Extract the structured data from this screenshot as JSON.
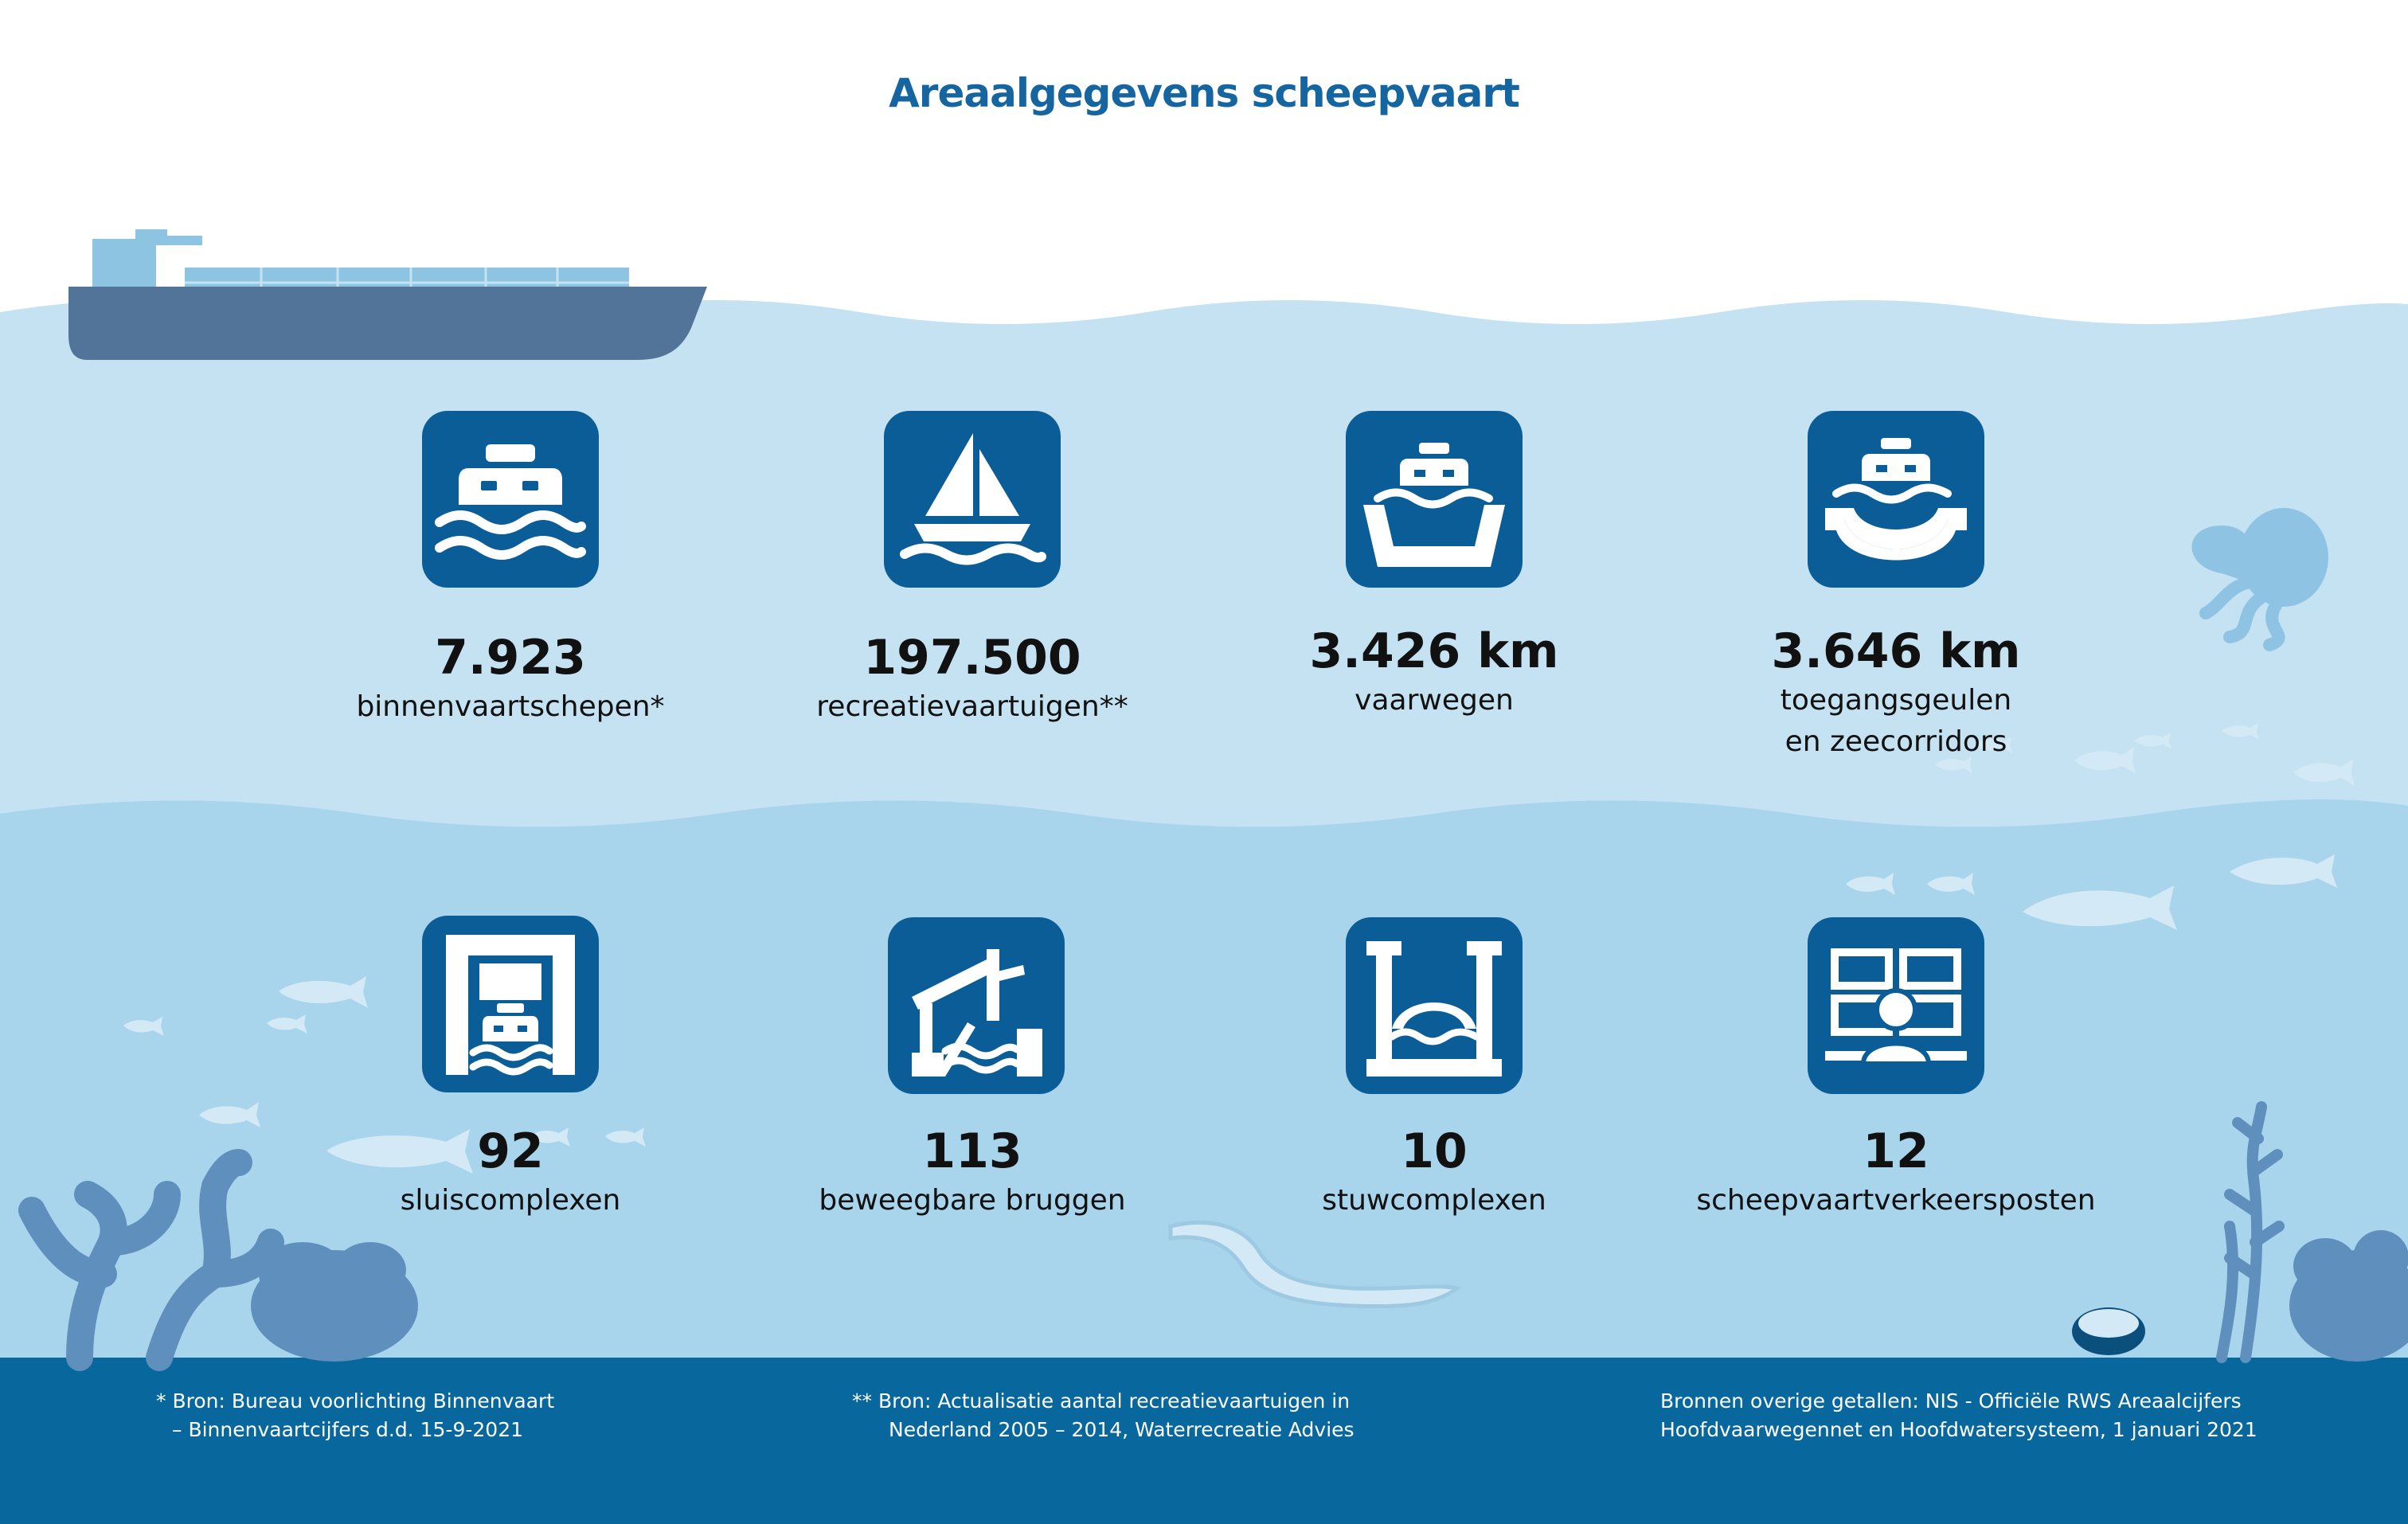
{
  "title": "Areaalgegevens scheepvaart",
  "colors": {
    "title": "#1565a0",
    "icon_bg": "#0b5d98",
    "sea_top": "#c4e2f1",
    "sea_mid": "#a8d4ec",
    "sea_floor": "#08679d",
    "decor": "#5f8fbd"
  },
  "stats": [
    {
      "icon": "inland-ship-icon",
      "value": "7.923",
      "label": "binnenvaartschepen*"
    },
    {
      "icon": "sailboat-icon",
      "value": "197.500",
      "label": "recreatievaartuigen**"
    },
    {
      "icon": "waterway-ship-icon",
      "value": "3.426 km",
      "label": "vaarwegen"
    },
    {
      "icon": "sea-channel-ship-icon",
      "value": "3.646 km",
      "label": "toegangsgeulen",
      "label2": "en zeecorridors"
    },
    {
      "icon": "lock-complex-icon",
      "value": "92",
      "label": "sluiscomplexen"
    },
    {
      "icon": "movable-bridge-icon",
      "value": "113",
      "label": "beweegbare bruggen"
    },
    {
      "icon": "weir-complex-icon",
      "value": "10",
      "label": "stuwcomplexen"
    },
    {
      "icon": "traffic-post-icon",
      "value": "12",
      "label": "scheepvaartverkeersposten"
    }
  ],
  "footnotes": {
    "note1": {
      "line1": "* Bron: Bureau voorlichting Binnenvaart",
      "line2": "– Binnenvaartcijfers d.d. 15-9-2021"
    },
    "note2": {
      "line1": "** Bron: Actualisatie aantal recreatievaartuigen in",
      "line2": "Nederland 2005 – 2014, Waterrecreatie Advies"
    },
    "note3": {
      "line1": "Bronnen overige getallen: NIS - Officiële RWS Areaalcijfers",
      "line2": "Hoofdvaarwegennet en Hoofdwatersysteem, 1 januari 2021"
    }
  }
}
